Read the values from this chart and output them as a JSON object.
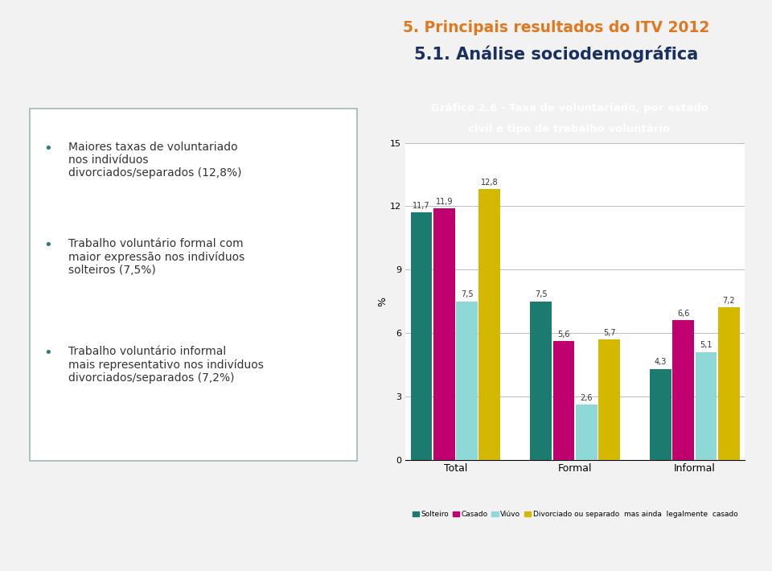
{
  "title_line1": "Gráfico 2.6 - Taxa de voluntariado, por estado",
  "title_line2": "civil e tipo de trabalho voluntário",
  "title_bg": "#2e7d7d",
  "title_color": "#ffffff",
  "ylabel": "%",
  "ylim": [
    0,
    15
  ],
  "yticks": [
    0,
    3,
    6,
    9,
    12,
    15
  ],
  "groups": [
    "Total",
    "Formal",
    "Informal"
  ],
  "series": [
    "Solteiro",
    "Casado",
    "Viúvo",
    "Divorciado ou separado  mas ainda  legalmente  casado"
  ],
  "colors": [
    "#1a7b6e",
    "#c0006e",
    "#8fd8d8",
    "#d4b800"
  ],
  "values": {
    "Total": [
      11.7,
      11.9,
      7.5,
      12.8
    ],
    "Formal": [
      7.5,
      5.6,
      2.6,
      5.7
    ],
    "Informal": [
      4.3,
      6.6,
      5.1,
      7.2
    ]
  },
  "bar_width": 0.18,
  "chart_area_bg": "#ffffff",
  "outer_bg": "#f2f2f2",
  "slide_title1": "5. Principais resultados do ITV 2012",
  "slide_title2": "5.1. Análise sociodemográfica",
  "title1_color": "#e07820",
  "title2_color": "#1a3060",
  "bullet1_bold": "taxas de voluntariado",
  "bullet1_pre": "Maiores ",
  "bullet1_post": "\nnos indivíduos\ndivorciados/separados (12,8%)",
  "bullet2_bold": "Trabalho voluntário formal",
  "bullet2_pre": "",
  "bullet2_post": " com\nmaior expressão nos indivíduos\nsolteiros (7,5%)",
  "bullet3_bold": "Trabalho voluntário",
  "bullet3_pre": "",
  "bullet3_post": " informal\nmais representativo nos indivíduos\ndivorciados/separados (7,2%)",
  "box_edge_color": "#a0b8b8",
  "box_face_color": "#ffffff",
  "bullet_color": "#2e7d7d",
  "text_color": "#333333"
}
